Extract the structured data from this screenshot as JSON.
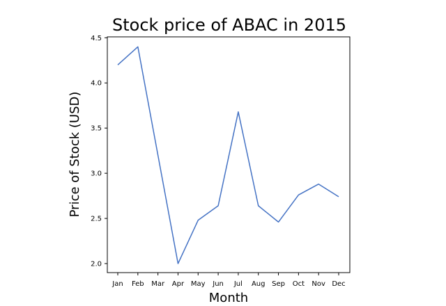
{
  "chart_data": {
    "type": "line",
    "title": "Stock price of ABAC in 2015",
    "xlabel": "Month",
    "ylabel": "Price of Stock (USD)",
    "categories": [
      "Jan",
      "Feb",
      "Mar",
      "Apr",
      "May",
      "Jun",
      "Jul",
      "Aug",
      "Sep",
      "Oct",
      "Nov",
      "Dec"
    ],
    "series": [
      {
        "values": [
          4.2,
          4.4,
          3.2,
          2.0,
          2.48,
          2.64,
          3.68,
          2.64,
          2.46,
          2.76,
          2.88,
          2.74
        ],
        "color": "#4472c4"
      }
    ],
    "ylim": [
      1.9,
      4.51
    ],
    "yticks": [
      "2.0",
      "2.5",
      "3.0",
      "3.5",
      "4.0",
      "4.5"
    ],
    "grid": false,
    "legend": "none"
  }
}
